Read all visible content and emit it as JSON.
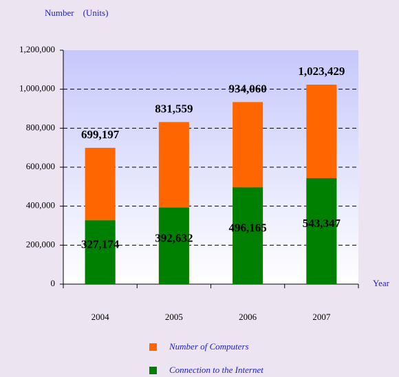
{
  "chart_data": {
    "type": "bar",
    "y_axis_label": "Number　(Units)",
    "x_axis_label": "Year",
    "categories": [
      "2004",
      "2005",
      "2006",
      "2007"
    ],
    "series": [
      {
        "name": "Number of Computers",
        "color": "#ff6600",
        "values": [
          699197,
          831559,
          934060,
          1023429
        ],
        "value_labels": [
          "699,197",
          "831,559",
          "934,060",
          "1,023,429"
        ]
      },
      {
        "name": "Connection to the Internet",
        "color": "#008000",
        "values": [
          327174,
          392632,
          496165,
          543347
        ],
        "value_labels": [
          "327,174",
          "392,632",
          "496,165",
          "543,347"
        ]
      }
    ],
    "ylim": [
      0,
      1200000
    ],
    "yticks": [
      0,
      {
        "value": 200000,
        "label": "200,000"
      },
      {
        "value": 400000,
        "label": "400,000"
      },
      {
        "value": 600000,
        "label": "600,000"
      },
      {
        "value": 800000,
        "label": "800,000"
      },
      {
        "value": 1000000,
        "label": "1,000,000"
      },
      {
        "value": 1200000,
        "label": "1,200,000"
      }
    ],
    "grid": true
  }
}
